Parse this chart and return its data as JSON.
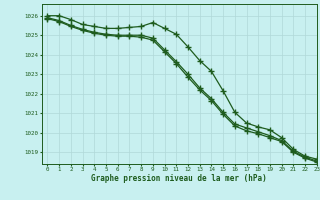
{
  "title": "Graphe pression niveau de la mer (hPa)",
  "background_color": "#c8f0f0",
  "grid_color": "#b0d8d8",
  "line_color": "#1e5c1e",
  "xlim": [
    -0.5,
    23
  ],
  "ylim": [
    1018.4,
    1026.6
  ],
  "yticks": [
    1019,
    1020,
    1021,
    1022,
    1023,
    1024,
    1025,
    1026
  ],
  "xticks": [
    0,
    1,
    2,
    3,
    4,
    5,
    6,
    7,
    8,
    9,
    10,
    11,
    12,
    13,
    14,
    15,
    16,
    17,
    18,
    19,
    20,
    21,
    22,
    23
  ],
  "hours": [
    0,
    1,
    2,
    3,
    4,
    5,
    6,
    7,
    8,
    9,
    10,
    11,
    12,
    13,
    14,
    15,
    16,
    17,
    18,
    19,
    20,
    21,
    22,
    23
  ],
  "series1": [
    1026.0,
    1026.0,
    1025.8,
    1025.55,
    1025.45,
    1025.35,
    1025.35,
    1025.4,
    1025.45,
    1025.65,
    1025.35,
    1025.05,
    1024.4,
    1023.7,
    1023.15,
    1022.15,
    1021.05,
    1020.5,
    1020.3,
    1020.15,
    1019.75,
    1019.15,
    1018.8,
    1018.65
  ],
  "series2": [
    1025.9,
    1025.75,
    1025.5,
    1025.3,
    1025.15,
    1025.05,
    1025.0,
    1025.0,
    1025.0,
    1024.85,
    1024.25,
    1023.65,
    1023.0,
    1022.3,
    1021.75,
    1021.05,
    1020.45,
    1020.25,
    1020.05,
    1019.85,
    1019.6,
    1019.05,
    1018.75,
    1018.55
  ],
  "series3": [
    1025.85,
    1025.7,
    1025.45,
    1025.25,
    1025.1,
    1025.0,
    1024.95,
    1024.95,
    1024.9,
    1024.75,
    1024.15,
    1023.55,
    1022.85,
    1022.2,
    1021.65,
    1020.95,
    1020.35,
    1020.1,
    1019.95,
    1019.75,
    1019.55,
    1019.0,
    1018.7,
    1018.5
  ]
}
